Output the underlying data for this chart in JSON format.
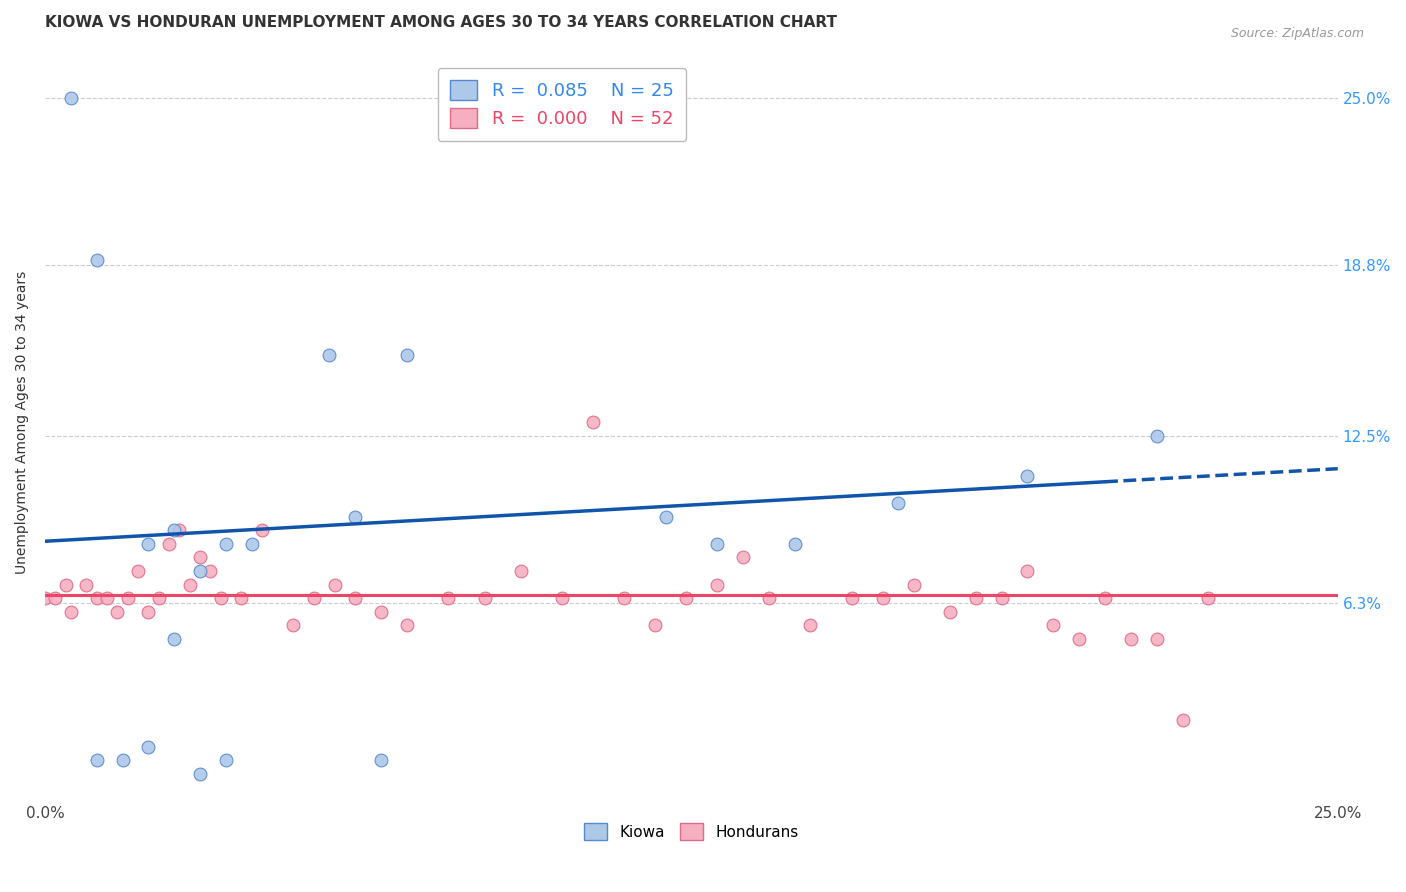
{
  "title": "KIOWA VS HONDURAN UNEMPLOYMENT AMONG AGES 30 TO 34 YEARS CORRELATION CHART",
  "source": "Source: ZipAtlas.com",
  "ylabel": "Unemployment Among Ages 30 to 34 years",
  "xlim": [
    0,
    0.25
  ],
  "ylim": [
    -0.01,
    0.27
  ],
  "ytick_labels_right": [
    "6.3%",
    "12.5%",
    "18.8%",
    "25.0%"
  ],
  "ytick_vals_right": [
    0.063,
    0.125,
    0.188,
    0.25
  ],
  "kiowa_x": [
    0.005,
    0.01,
    0.01,
    0.015,
    0.02,
    0.02,
    0.025,
    0.025,
    0.03,
    0.03,
    0.035,
    0.035,
    0.04,
    0.055,
    0.06,
    0.065,
    0.07,
    0.12,
    0.13,
    0.145,
    0.165,
    0.19,
    0.215
  ],
  "kiowa_y": [
    0.25,
    0.19,
    0.005,
    0.005,
    0.085,
    0.01,
    0.09,
    0.05,
    0.075,
    0.0,
    0.085,
    0.005,
    0.085,
    0.155,
    0.095,
    0.005,
    0.155,
    0.095,
    0.085,
    0.085,
    0.1,
    0.11,
    0.125
  ],
  "honduran_x": [
    0.0,
    0.002,
    0.004,
    0.005,
    0.008,
    0.01,
    0.012,
    0.014,
    0.016,
    0.018,
    0.02,
    0.022,
    0.024,
    0.026,
    0.028,
    0.03,
    0.032,
    0.034,
    0.038,
    0.042,
    0.048,
    0.052,
    0.056,
    0.06,
    0.065,
    0.07,
    0.078,
    0.085,
    0.092,
    0.1,
    0.106,
    0.112,
    0.118,
    0.124,
    0.13,
    0.135,
    0.14,
    0.148,
    0.156,
    0.162,
    0.168,
    0.175,
    0.18,
    0.185,
    0.19,
    0.195,
    0.2,
    0.205,
    0.21,
    0.215,
    0.22,
    0.225
  ],
  "honduran_y": [
    0.065,
    0.065,
    0.07,
    0.06,
    0.07,
    0.065,
    0.065,
    0.06,
    0.065,
    0.075,
    0.06,
    0.065,
    0.085,
    0.09,
    0.07,
    0.08,
    0.075,
    0.065,
    0.065,
    0.09,
    0.055,
    0.065,
    0.07,
    0.065,
    0.06,
    0.055,
    0.065,
    0.065,
    0.075,
    0.065,
    0.13,
    0.065,
    0.055,
    0.065,
    0.07,
    0.08,
    0.065,
    0.055,
    0.065,
    0.065,
    0.07,
    0.06,
    0.065,
    0.065,
    0.075,
    0.055,
    0.05,
    0.065,
    0.05,
    0.05,
    0.02,
    0.065
  ],
  "kiowa_color": "#adc8e8",
  "honduran_color": "#f5afc0",
  "kiowa_edge": "#5588cc",
  "honduran_edge": "#e06888",
  "trend_kiowa_color": "#1155aa",
  "trend_honduran_color": "#ee4466",
  "trend_kiowa_x0": 0.0,
  "trend_kiowa_y0": 0.086,
  "trend_kiowa_x1": 0.205,
  "trend_kiowa_y1": 0.108,
  "trend_kiowa_dash_x0": 0.205,
  "trend_kiowa_dash_x1": 0.25,
  "trend_honduran_y": 0.066,
  "grid_color": "#cccccc",
  "background_color": "#ffffff",
  "marker_size": 85,
  "title_fontsize": 11,
  "axis_label_fontsize": 10,
  "legend_fontsize": 13
}
